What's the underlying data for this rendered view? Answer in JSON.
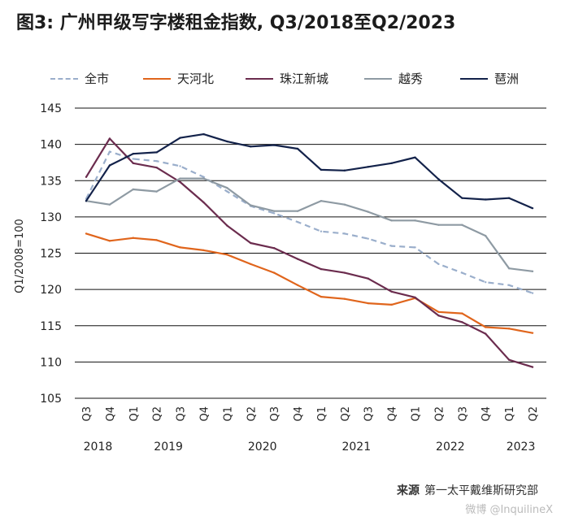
{
  "title": "图3: 广州甲级写字楼租金指数, Q3/2018至Q2/2023",
  "source_label": "来源",
  "source_text": "第一太平戴维斯研究部",
  "watermark": "微博 @InquilineX",
  "chart_data": {
    "type": "line",
    "ylabel": "Q1/2008=100",
    "ylim": [
      105,
      145
    ],
    "yticks": [
      105,
      110,
      115,
      120,
      125,
      130,
      135,
      140,
      145
    ],
    "grid": true,
    "legend_position": "top",
    "categories": [
      "Q3",
      "Q4",
      "Q1",
      "Q2",
      "Q3",
      "Q4",
      "Q1",
      "Q2",
      "Q3",
      "Q4",
      "Q1",
      "Q2",
      "Q3",
      "Q4",
      "Q1",
      "Q2",
      "Q3",
      "Q4",
      "Q1",
      "Q2"
    ],
    "year_labels": [
      {
        "label": "2018",
        "start": 0,
        "end": 1
      },
      {
        "label": "2019",
        "start": 2,
        "end": 5
      },
      {
        "label": "2020",
        "start": 6,
        "end": 9
      },
      {
        "label": "2021",
        "start": 10,
        "end": 13
      },
      {
        "label": "2022",
        "start": 14,
        "end": 17
      },
      {
        "label": "2023",
        "start": 18,
        "end": 19
      }
    ],
    "series": [
      {
        "name": "全市",
        "color": "#9aaecb",
        "dash": true,
        "values": [
          132.5,
          139.0,
          138.0,
          137.7,
          137.0,
          135.5,
          133.5,
          131.5,
          130.5,
          129.3,
          128.0,
          127.7,
          127.0,
          126.0,
          125.8,
          123.5,
          122.3,
          121.0,
          120.6,
          119.5
        ]
      },
      {
        "name": "天河北",
        "color": "#e0651c",
        "dash": false,
        "values": [
          127.7,
          126.7,
          127.1,
          126.8,
          125.8,
          125.4,
          124.8,
          123.5,
          122.3,
          120.6,
          119.0,
          118.7,
          118.1,
          117.9,
          118.8,
          116.9,
          116.7,
          114.8,
          114.6,
          114.0
        ]
      },
      {
        "name": "珠江新城",
        "color": "#6b2c4e",
        "dash": false,
        "values": [
          135.5,
          140.8,
          137.4,
          136.8,
          134.8,
          132.0,
          128.8,
          126.4,
          125.7,
          124.2,
          122.8,
          122.3,
          121.5,
          119.7,
          118.9,
          116.4,
          115.5,
          113.9,
          110.3,
          109.3
        ]
      },
      {
        "name": "越秀",
        "color": "#8e9aa3",
        "dash": false,
        "values": [
          132.2,
          131.7,
          133.8,
          133.5,
          135.3,
          135.3,
          134.0,
          131.6,
          130.8,
          130.8,
          132.2,
          131.7,
          130.7,
          129.5,
          129.5,
          128.9,
          128.9,
          127.4,
          122.9,
          122.5
        ]
      },
      {
        "name": "琶洲",
        "color": "#13224a",
        "dash": false,
        "values": [
          132.2,
          137.1,
          138.7,
          138.9,
          140.9,
          141.4,
          140.4,
          139.7,
          139.9,
          139.4,
          136.5,
          136.4,
          136.9,
          137.4,
          138.2,
          135.2,
          132.6,
          132.4,
          132.6,
          131.2
        ]
      }
    ]
  }
}
